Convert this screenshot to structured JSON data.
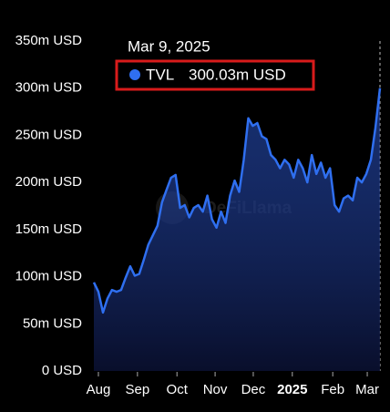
{
  "chart_data": {
    "type": "area",
    "tooltip": {
      "date": "Mar 9, 2025",
      "value_label": "300.03m USD"
    },
    "watermark": "DeFiLlama",
    "series": [
      {
        "name": "TVL",
        "color": "#2f6ff0",
        "values": [
          94,
          84,
          62,
          77,
          86,
          84,
          86,
          99,
          111,
          101,
          103,
          118,
          134,
          144,
          154,
          179,
          192,
          205,
          208,
          173,
          176,
          163,
          173,
          176,
          169,
          186,
          161,
          152,
          169,
          157,
          186,
          202,
          190,
          224,
          268,
          260,
          263,
          249,
          246,
          229,
          224,
          215,
          224,
          219,
          205,
          224,
          215,
          200,
          229,
          209,
          221,
          205,
          215,
          176,
          169,
          183,
          186,
          181,
          205,
          200,
          209,
          224,
          258,
          300.03
        ]
      }
    ],
    "xlim": [
      0,
      63
    ],
    "xticks": [
      {
        "value": 1,
        "label": "Aug"
      },
      {
        "value": 9.6,
        "label": "Sep"
      },
      {
        "value": 18.3,
        "label": "Oct"
      },
      {
        "value": 26.7,
        "label": "Nov"
      },
      {
        "value": 35.1,
        "label": "Dec"
      },
      {
        "value": 43.7,
        "label": "2025"
      },
      {
        "value": 52.6,
        "label": "Feb"
      },
      {
        "value": 60.2,
        "label": "Mar"
      }
    ],
    "ylim": [
      0,
      350
    ],
    "yticks": [
      {
        "value": 0,
        "label": "0 USD"
      },
      {
        "value": 50,
        "label": "50m USD"
      },
      {
        "value": 100,
        "label": "100m USD"
      },
      {
        "value": 150,
        "label": "150m USD"
      },
      {
        "value": 200,
        "label": "200m USD"
      },
      {
        "value": 250,
        "label": "250m USD"
      },
      {
        "value": 300,
        "label": "300m USD"
      },
      {
        "value": 350,
        "label": "350m USD"
      }
    ],
    "grid": false
  }
}
